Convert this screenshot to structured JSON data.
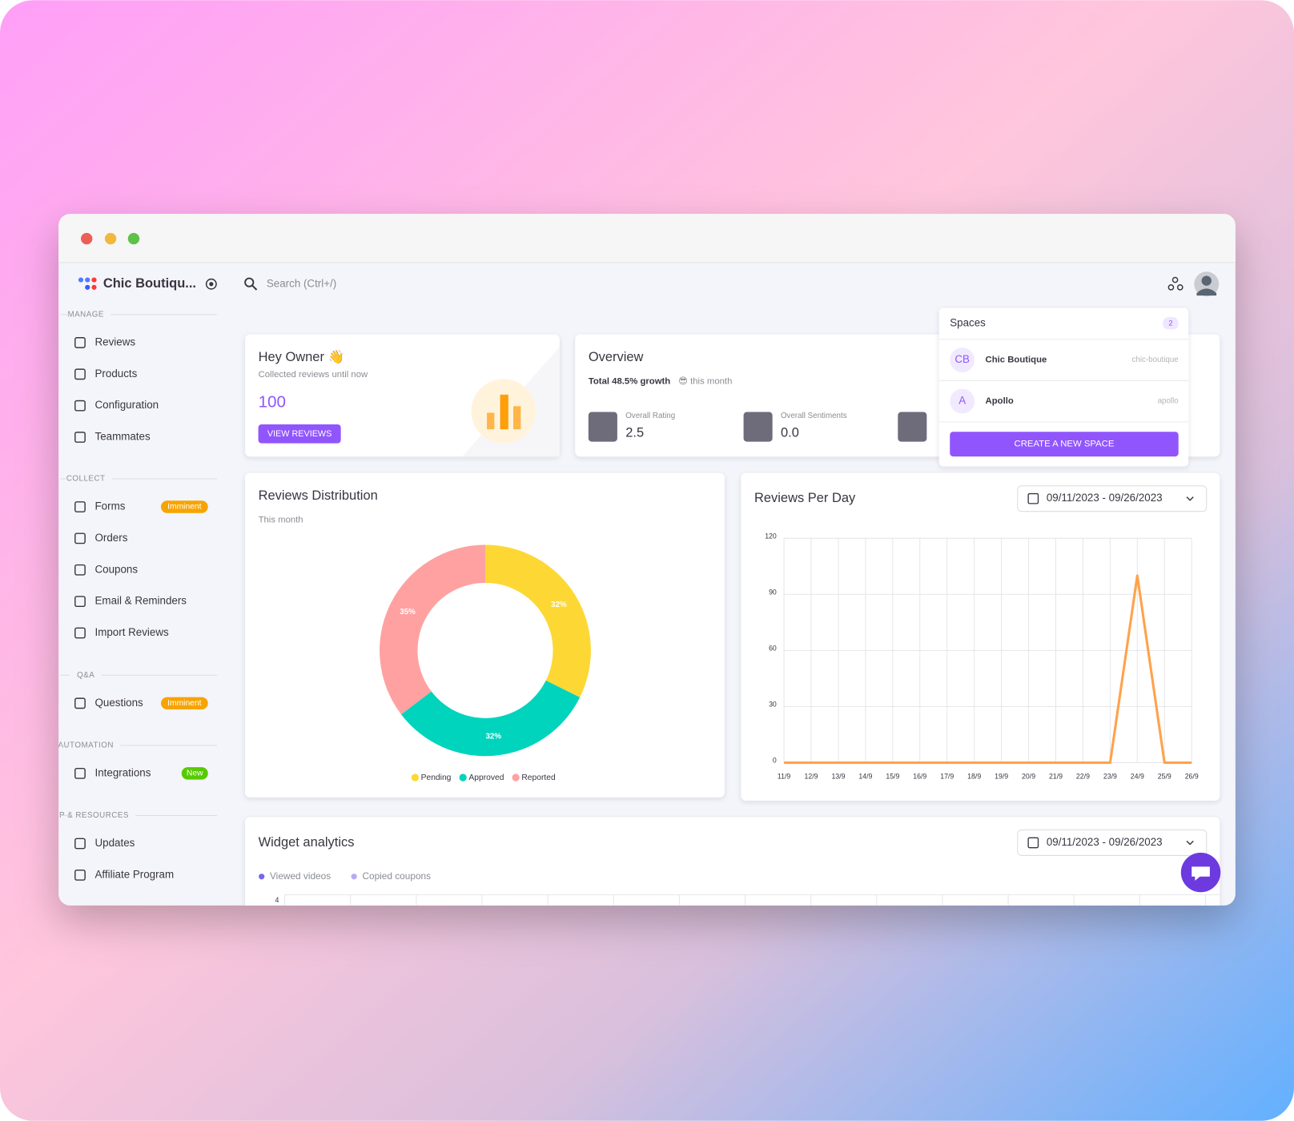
{
  "sidebar": {
    "brand": "Chic Boutiqu...",
    "sections": [
      {
        "title": "MANAGE",
        "items": [
          {
            "label": "Reviews"
          },
          {
            "label": "Products"
          },
          {
            "label": "Configuration"
          },
          {
            "label": "Teammates"
          }
        ]
      },
      {
        "title": "COLLECT",
        "items": [
          {
            "label": "Forms",
            "badge": "Imminent"
          },
          {
            "label": "Orders"
          },
          {
            "label": "Coupons"
          },
          {
            "label": "Email & Reminders"
          },
          {
            "label": "Import Reviews"
          }
        ]
      },
      {
        "title": "Q&A",
        "items": [
          {
            "label": "Questions",
            "badge": "Imminent"
          }
        ]
      },
      {
        "title": "AUTOMATION",
        "items": [
          {
            "label": "Integrations",
            "badge": "New"
          }
        ]
      },
      {
        "title": "HELP & RESOURCES",
        "items": [
          {
            "label": "Updates"
          },
          {
            "label": "Affiliate Program"
          }
        ]
      }
    ]
  },
  "header": {
    "search_placeholder": "Search (Ctrl+/)"
  },
  "welcome": {
    "title": "Hey Owner 👋",
    "subtitle": "Collected reviews until now",
    "count": 100,
    "button": "VIEW REVIEWS"
  },
  "overview": {
    "title": "Overview",
    "growth": "Total 48.5% growth",
    "growth_period": "😎 this month",
    "stats": [
      {
        "label": "Overall Rating",
        "value": "2.5"
      },
      {
        "label": "Overall Sentiments",
        "value": "0.0"
      }
    ]
  },
  "spaces": {
    "title": "Spaces",
    "count": 2,
    "items": [
      {
        "initials": "CB",
        "name": "Chic Boutique",
        "slug": "chic-boutique"
      },
      {
        "initials": "A",
        "name": "Apollo",
        "slug": "apollo"
      }
    ],
    "button": "CREATE A NEW SPACE"
  },
  "charts": [
    {
      "type": "pie",
      "title": "Reviews Distribution",
      "subtitle": "This month",
      "categories": [
        "Pending",
        "Approved",
        "Reported"
      ],
      "values": [
        32,
        32,
        35
      ],
      "value_labels": [
        "32%",
        "32%",
        "35%"
      ],
      "colors": [
        "#fdd835",
        "#00d4bd",
        "#ffa1a1"
      ]
    },
    {
      "type": "line",
      "title": "Reviews Per Day",
      "date_range": "09/11/2023 - 09/26/2023",
      "categories": [
        "11/9",
        "12/9",
        "13/9",
        "14/9",
        "15/9",
        "16/9",
        "17/9",
        "18/9",
        "19/9",
        "20/9",
        "21/9",
        "22/9",
        "23/9",
        "24/9",
        "25/9",
        "26/9"
      ],
      "values": [
        0,
        0,
        0,
        0,
        0,
        0,
        0,
        0,
        0,
        0,
        0,
        0,
        0,
        100,
        0,
        0
      ],
      "color": "#ffa24b",
      "ylim": [
        0,
        120
      ],
      "yticks": [
        0,
        30,
        60,
        90,
        120
      ],
      "grid": true
    }
  ],
  "widget": {
    "title": "Widget analytics",
    "date_range": "09/11/2023 - 09/26/2023",
    "legend": [
      {
        "name": "Viewed videos",
        "color": "#7367f0"
      },
      {
        "name": "Copied coupons",
        "color": "#b9a9f5"
      }
    ],
    "top_tick": 4
  }
}
